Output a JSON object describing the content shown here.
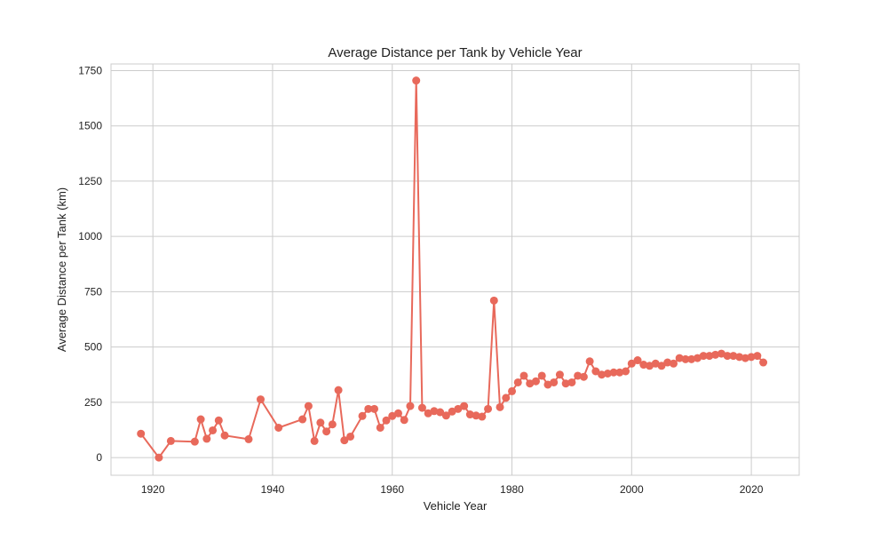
{
  "chart_data": {
    "type": "line",
    "title": "Average Distance per Tank by Vehicle Year",
    "xlabel": "Vehicle Year",
    "ylabel": "Average Distance per Tank (km)",
    "xlim": [
      1913,
      2028
    ],
    "ylim": [
      -80,
      1780
    ],
    "xticks": [
      1920,
      1940,
      1960,
      1980,
      2000,
      2020
    ],
    "yticks": [
      0,
      250,
      500,
      750,
      1000,
      1250,
      1500,
      1750
    ],
    "grid": true,
    "color": "#e8695b",
    "series": [
      {
        "x": [
          1918,
          1921,
          1923,
          1927,
          1928,
          1929,
          1930,
          1931,
          1932,
          1936,
          1938,
          1941,
          1945,
          1946,
          1947,
          1948,
          1949,
          1950,
          1951,
          1952,
          1953,
          1955,
          1956,
          1957,
          1958,
          1959,
          1960,
          1961,
          1962,
          1963,
          1964,
          1965,
          1966,
          1967,
          1968,
          1969,
          1970,
          1971,
          1972,
          1973,
          1974,
          1975,
          1976,
          1977,
          1978,
          1979,
          1980,
          1981,
          1982,
          1983,
          1984,
          1985,
          1986,
          1987,
          1988,
          1989,
          1990,
          1991,
          1992,
          1993,
          1994,
          1995,
          1996,
          1997,
          1998,
          1999,
          2000,
          2001,
          2002,
          2003,
          2004,
          2005,
          2006,
          2007,
          2008,
          2009,
          2010,
          2011,
          2012,
          2013,
          2014,
          2015,
          2016,
          2017,
          2018,
          2019,
          2020,
          2021,
          2022
        ],
        "values": [
          108,
          0,
          75,
          72,
          173,
          85,
          123,
          168,
          100,
          83,
          263,
          135,
          173,
          233,
          75,
          158,
          118,
          150,
          305,
          78,
          95,
          188,
          220,
          220,
          135,
          168,
          188,
          200,
          170,
          233,
          1705,
          225,
          200,
          210,
          205,
          190,
          208,
          220,
          233,
          195,
          190,
          185,
          220,
          710,
          228,
          270,
          300,
          340,
          370,
          335,
          345,
          370,
          330,
          340,
          375,
          335,
          340,
          370,
          365,
          435,
          390,
          375,
          380,
          385,
          385,
          390,
          425,
          440,
          420,
          415,
          425,
          415,
          430,
          425,
          450,
          445,
          445,
          450,
          460,
          460,
          465,
          470,
          460,
          460,
          455,
          450,
          455,
          460,
          430
        ]
      }
    ]
  }
}
